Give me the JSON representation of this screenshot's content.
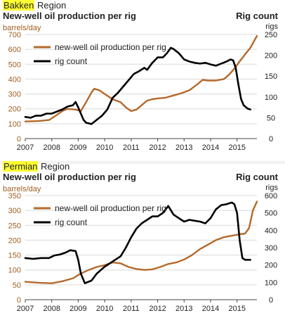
{
  "colors": {
    "production": "#b5692a",
    "rigs": "#000000",
    "left_axis_text": "#a05d1f",
    "highlight": "#ffff33",
    "grid": "#d9d9d9"
  },
  "chart_data": [
    {
      "type": "line",
      "region": "Bakken",
      "region_suffix": " Region",
      "title": "New-well oil production per rig",
      "right_title": "Rig count",
      "ylabel": "barrels/day",
      "y2label": "rigs",
      "legend_position": "top-left",
      "grid": true,
      "ylim": [
        0,
        700
      ],
      "y2lim": [
        0,
        250
      ],
      "xlim": [
        2007,
        2015.75
      ],
      "x_ticks": [
        "2007",
        "2008",
        "2009",
        "2010",
        "2011",
        "2012",
        "2013",
        "2014",
        "2015"
      ],
      "y_ticks": [
        "0",
        "100",
        "200",
        "300",
        "400",
        "500",
        "600",
        "700"
      ],
      "y2_ticks": [
        "0",
        "50",
        "100",
        "150",
        "200",
        "250"
      ],
      "series": [
        {
          "name": "new-well oil production per rig",
          "axis": "left",
          "x": [
            2007,
            2007.5,
            2007.9,
            2008.2,
            2008.4,
            2008.6,
            2008.9,
            2009.1,
            2009.3,
            2009.5,
            2009.6,
            2009.8,
            2010.0,
            2010.3,
            2010.6,
            2010.8,
            2011.0,
            2011.2,
            2011.4,
            2011.6,
            2011.8,
            2012.0,
            2012.3,
            2012.6,
            2012.9,
            2013.2,
            2013.5,
            2013.7,
            2013.9,
            2014.2,
            2014.5,
            2014.7,
            2014.9,
            2015.1,
            2015.3,
            2015.5,
            2015.75
          ],
          "values": [
            115,
            118,
            125,
            160,
            185,
            200,
            195,
            185,
            245,
            310,
            335,
            325,
            300,
            265,
            245,
            210,
            185,
            195,
            225,
            255,
            265,
            270,
            275,
            290,
            305,
            325,
            365,
            395,
            390,
            390,
            400,
            430,
            470,
            520,
            565,
            610,
            690
          ]
        },
        {
          "name": "rig count",
          "axis": "right",
          "x": [
            2007,
            2007.2,
            2007.4,
            2007.6,
            2007.8,
            2008.0,
            2008.2,
            2008.4,
            2008.6,
            2008.8,
            2008.9,
            2009.0,
            2009.1,
            2009.2,
            2009.3,
            2009.5,
            2009.7,
            2009.9,
            2010.1,
            2010.3,
            2010.5,
            2010.7,
            2010.9,
            2011.1,
            2011.3,
            2011.5,
            2011.6,
            2011.8,
            2012.0,
            2012.2,
            2012.35,
            2012.5,
            2012.6,
            2012.8,
            2013.0,
            2013.2,
            2013.4,
            2013.6,
            2013.8,
            2014.0,
            2014.2,
            2014.4,
            2014.6,
            2014.75,
            2014.85,
            2014.95,
            2015.05,
            2015.15,
            2015.25,
            2015.4,
            2015.5
          ],
          "values": [
            52,
            50,
            55,
            55,
            60,
            60,
            65,
            70,
            77,
            80,
            88,
            75,
            60,
            45,
            38,
            35,
            45,
            55,
            70,
            98,
            110,
            125,
            140,
            155,
            162,
            170,
            165,
            182,
            195,
            195,
            205,
            218,
            215,
            205,
            190,
            185,
            182,
            180,
            182,
            178,
            175,
            180,
            185,
            190,
            188,
            170,
            130,
            95,
            80,
            72,
            70
          ]
        }
      ]
    },
    {
      "type": "line",
      "region": "Permian",
      "region_suffix": " Region",
      "title": "New-well oil production per rig",
      "right_title": "Rig count",
      "ylabel": "barrels/day",
      "y2label": "rigs",
      "legend_position": "top-left",
      "grid": true,
      "ylim": [
        0,
        350
      ],
      "y2lim": [
        0,
        600
      ],
      "xlim": [
        2007,
        2015.75
      ],
      "x_ticks": [
        "2007",
        "2008",
        "2009",
        "2010",
        "2011",
        "2012",
        "2013",
        "2014",
        "2015"
      ],
      "y_ticks": [
        "0",
        "50",
        "100",
        "150",
        "200",
        "250",
        "300",
        "350"
      ],
      "y2_ticks": [
        "0",
        "100",
        "200",
        "300",
        "400",
        "500",
        "600"
      ],
      "series": [
        {
          "name": "new-well oil production per rig",
          "axis": "left",
          "x": [
            2007,
            2007.5,
            2008.0,
            2008.4,
            2008.8,
            2009.1,
            2009.4,
            2009.7,
            2010.0,
            2010.3,
            2010.6,
            2010.9,
            2011.2,
            2011.5,
            2011.8,
            2012.1,
            2012.4,
            2012.7,
            2013.0,
            2013.3,
            2013.6,
            2013.9,
            2014.2,
            2014.5,
            2014.8,
            2015.1,
            2015.3,
            2015.45,
            2015.6,
            2015.75
          ],
          "values": [
            60,
            57,
            55,
            62,
            72,
            88,
            100,
            110,
            116,
            125,
            122,
            110,
            103,
            100,
            102,
            110,
            120,
            125,
            135,
            150,
            170,
            185,
            200,
            210,
            215,
            220,
            222,
            240,
            300,
            330
          ]
        },
        {
          "name": "rig count",
          "axis": "right",
          "x": [
            2007,
            2007.3,
            2007.6,
            2007.9,
            2008.1,
            2008.3,
            2008.5,
            2008.7,
            2008.9,
            2009.0,
            2009.1,
            2009.25,
            2009.5,
            2009.7,
            2010.0,
            2010.3,
            2010.6,
            2010.8,
            2011.0,
            2011.2,
            2011.4,
            2011.6,
            2011.8,
            2012.0,
            2012.2,
            2012.4,
            2012.6,
            2012.8,
            2013.0,
            2013.2,
            2013.4,
            2013.6,
            2013.8,
            2014.0,
            2014.2,
            2014.4,
            2014.6,
            2014.8,
            2014.9,
            2015.0,
            2015.1,
            2015.2,
            2015.3,
            2015.5
          ],
          "values": [
            240,
            235,
            240,
            240,
            255,
            260,
            270,
            285,
            280,
            230,
            150,
            95,
            110,
            150,
            190,
            220,
            250,
            300,
            360,
            410,
            440,
            460,
            480,
            480,
            500,
            540,
            490,
            470,
            450,
            460,
            455,
            450,
            440,
            470,
            520,
            545,
            550,
            560,
            550,
            500,
            340,
            240,
            230,
            230
          ]
        }
      ]
    }
  ]
}
